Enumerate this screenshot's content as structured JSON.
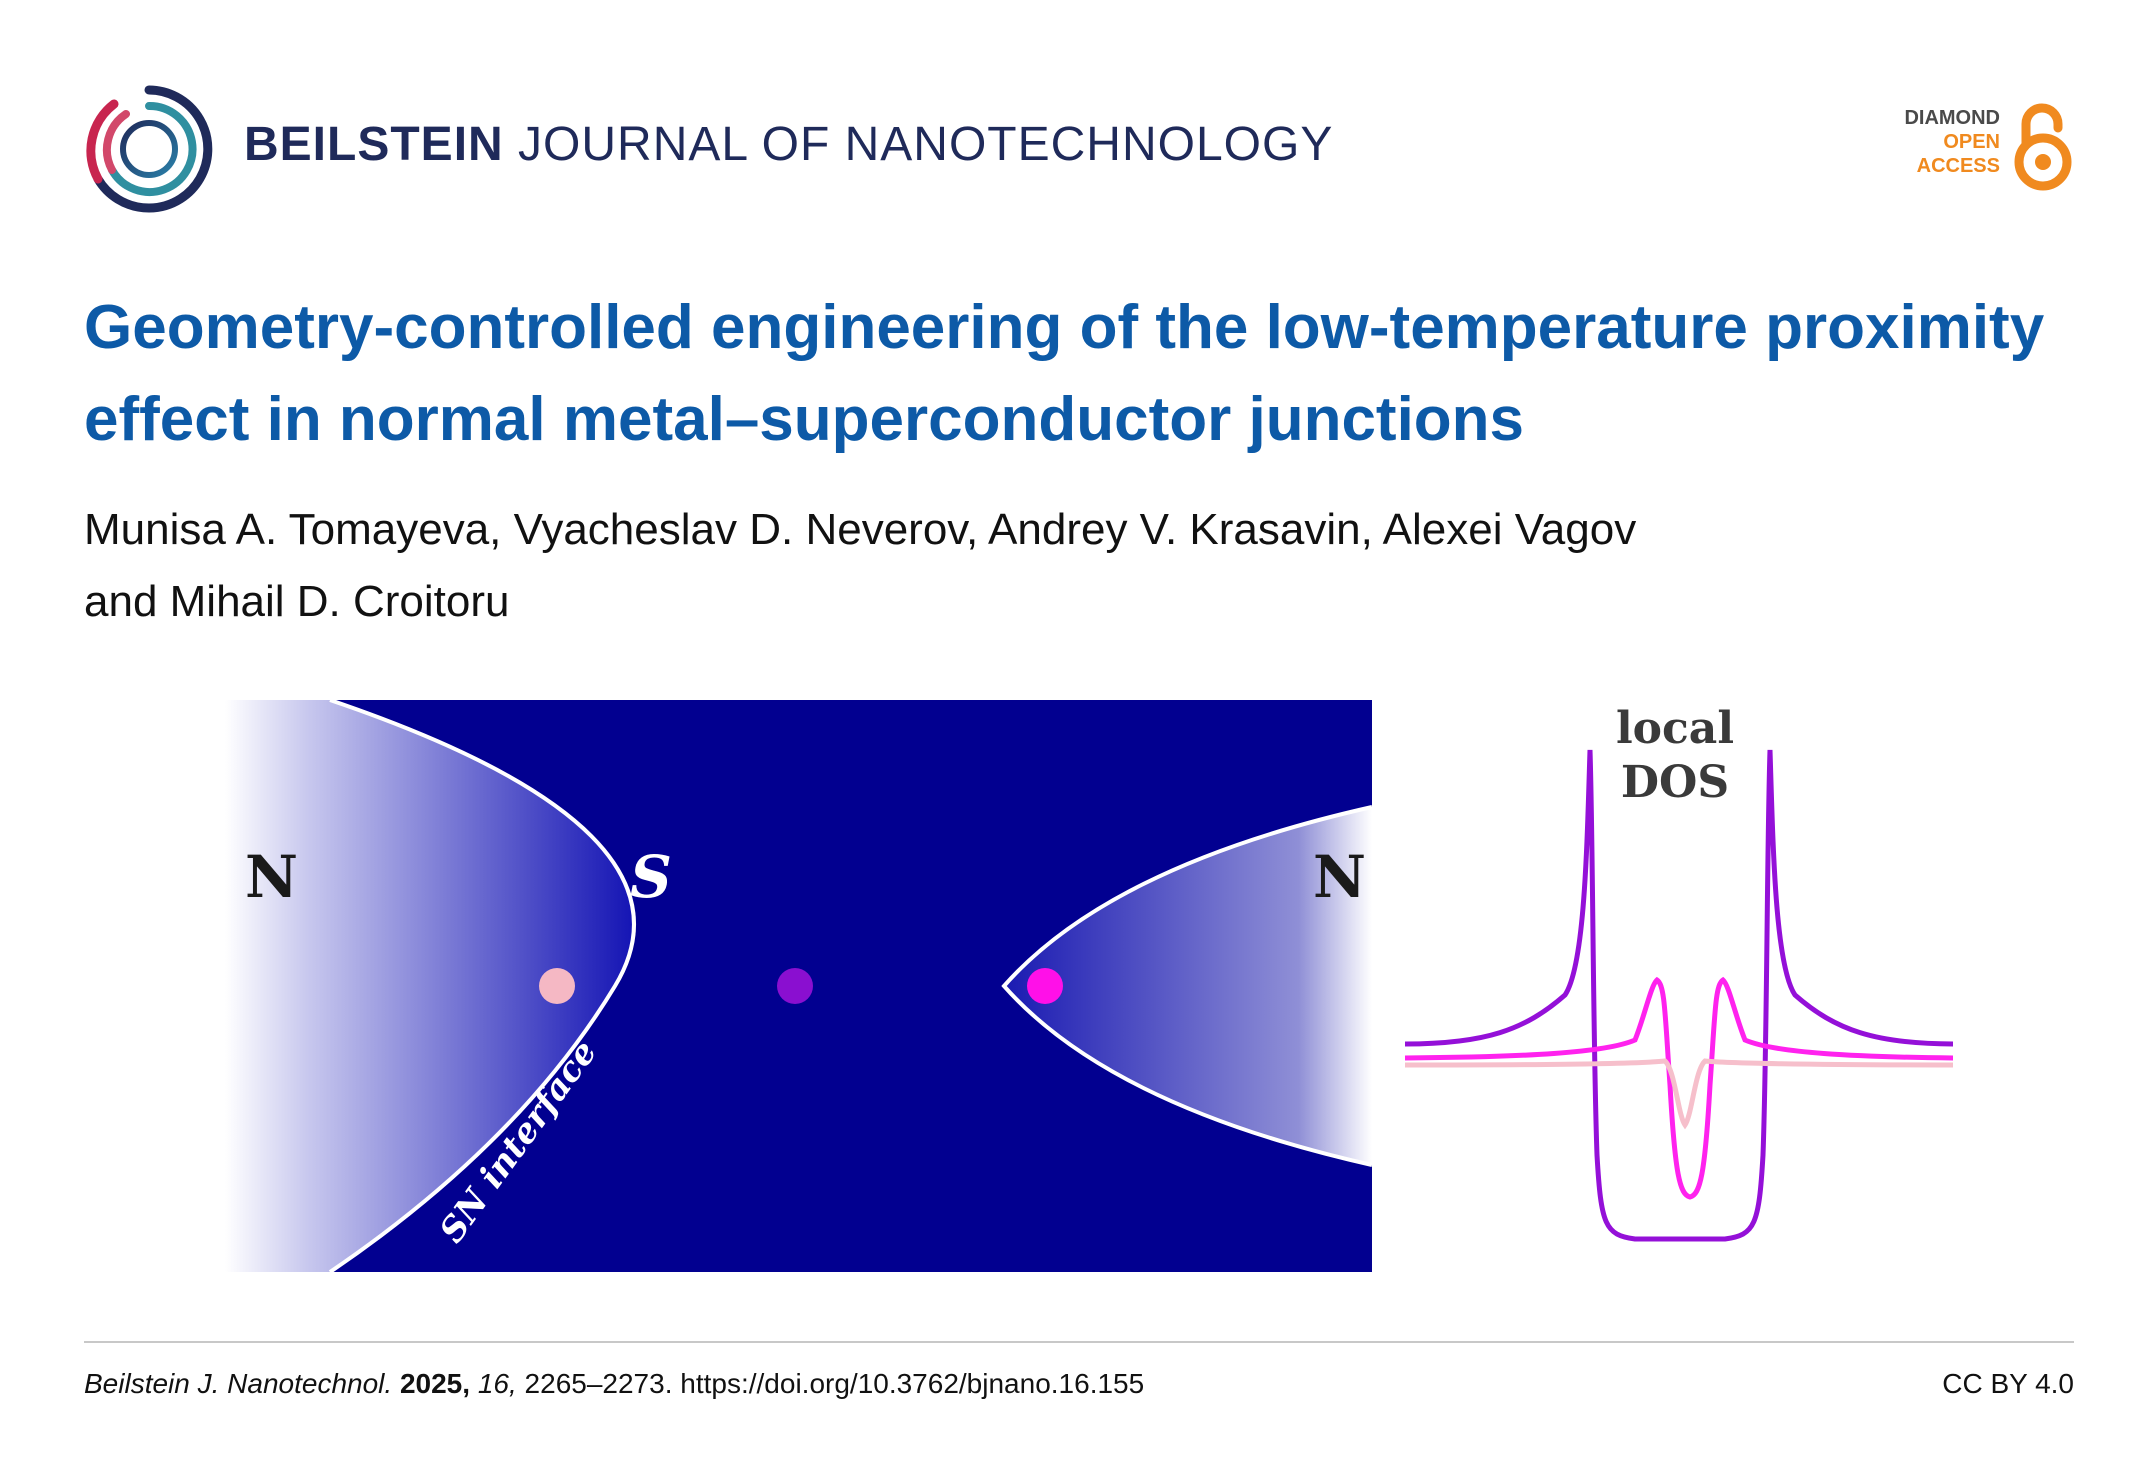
{
  "header": {
    "journal_bold": "BEILSTEIN",
    "journal_rest": "JOURNAL OF NANOTECHNOLOGY",
    "oa_line1": "DIAMOND",
    "oa_line2": "OPEN",
    "oa_line3": "ACCESS"
  },
  "article": {
    "title": "Geometry-controlled engineering of the low-temperature proximity effect in normal metal–superconductor junctions",
    "authors_line1": "Munisa A. Tomayeva, Vyacheslav D. Neverov, Andrey V. Krasavin, Alexei Vagov",
    "authors_line2": "and Mihail D. Croitoru"
  },
  "figure": {
    "label_left_n": "N",
    "label_s": "S",
    "label_right_n": "N",
    "interface_label": "SN interface",
    "dos_label_1": "local",
    "dos_label_2": "DOS"
  },
  "colors": {
    "superconductor": "#020090",
    "title": "#0d5aa7",
    "journal": "#1f2a5a",
    "oa_orange": "#f08a1f",
    "dot_pink": "#f5b8c4",
    "dot_purple": "#8a0fd0",
    "dot_magenta": "#ff10e8"
  },
  "footer": {
    "journal_abbrev": "Beilstein J. Nanotechnol.",
    "year": "2025,",
    "volume": "16,",
    "pages_doi": "2265–2273. https://doi.org/10.3762/bjnano.16.155",
    "license": "CC BY 4.0"
  }
}
